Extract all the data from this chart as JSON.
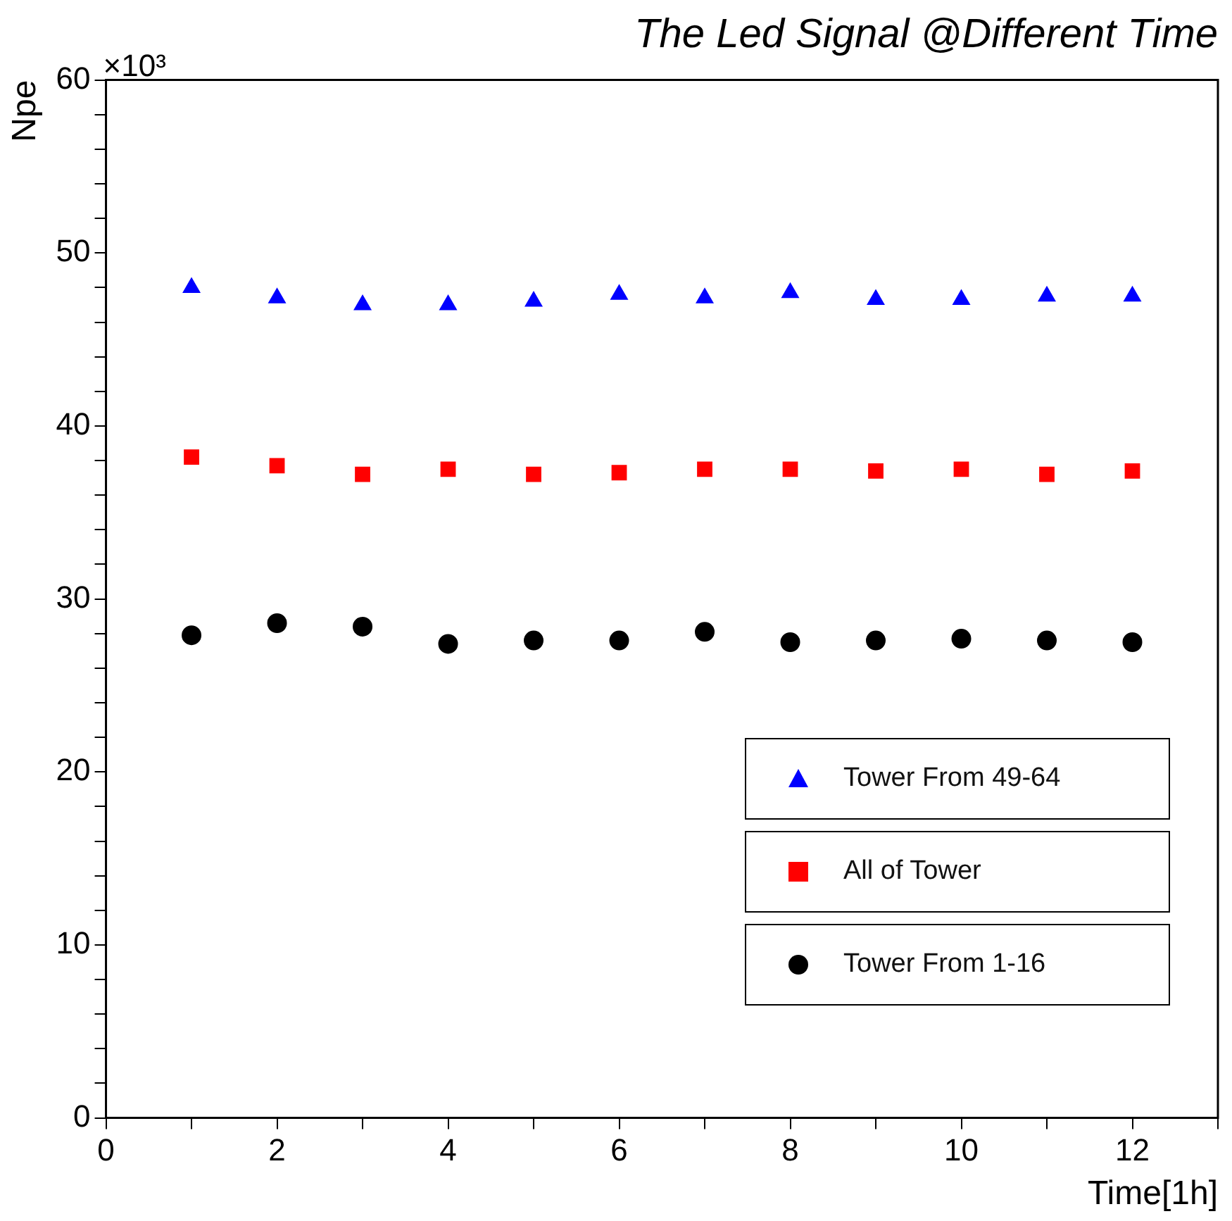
{
  "chart_data": {
    "type": "scatter",
    "title": "The Led Signal @Different Time",
    "xlabel": "Time[1h]",
    "ylabel": "Npe",
    "annotations": [
      "×10³"
    ],
    "x": [
      1,
      2,
      3,
      4,
      5,
      6,
      7,
      8,
      9,
      10,
      11,
      12
    ],
    "series": [
      {
        "name": "Tower From 49-64",
        "color": "#0000ff",
        "marker": "triangle",
        "values": [
          48.0,
          47.4,
          47.0,
          47.0,
          47.2,
          47.6,
          47.4,
          47.7,
          47.3,
          47.3,
          47.5,
          47.5
        ]
      },
      {
        "name": "All of Tower",
        "color": "#ff0000",
        "marker": "square",
        "values": [
          38.2,
          37.7,
          37.2,
          37.5,
          37.2,
          37.3,
          37.5,
          37.5,
          37.4,
          37.5,
          37.2,
          37.4
        ]
      },
      {
        "name": "Tower From 1-16",
        "color": "#000000",
        "marker": "circle",
        "values": [
          27.9,
          28.6,
          28.4,
          27.4,
          27.6,
          27.6,
          28.1,
          27.5,
          27.6,
          27.7,
          27.6,
          27.5
        ]
      }
    ],
    "xlim": [
      0,
      13
    ],
    "xticks": [
      0,
      {
        "value": 1,
        "label": null
      },
      2,
      {
        "value": 3,
        "label": null
      },
      4,
      {
        "value": 5,
        "label": null
      },
      6,
      {
        "value": 7,
        "label": null
      },
      8,
      {
        "value": 9,
        "label": null
      },
      10,
      {
        "value": 11,
        "label": null
      },
      12,
      {
        "value": 13,
        "label": null
      }
    ],
    "ylim": [
      0,
      60
    ],
    "yticks": [
      0,
      {
        "value": 2,
        "label": null
      },
      {
        "value": 4,
        "label": null
      },
      {
        "value": 6,
        "label": null
      },
      {
        "value": 8,
        "label": null
      },
      10,
      {
        "value": 12,
        "label": null
      },
      {
        "value": 14,
        "label": null
      },
      {
        "value": 16,
        "label": null
      },
      {
        "value": 18,
        "label": null
      },
      20,
      {
        "value": 22,
        "label": null
      },
      {
        "value": 24,
        "label": null
      },
      {
        "value": 26,
        "label": null
      },
      {
        "value": 28,
        "label": null
      },
      30,
      {
        "value": 32,
        "label": null
      },
      {
        "value": 34,
        "label": null
      },
      {
        "value": 36,
        "label": null
      },
      {
        "value": 38,
        "label": null
      },
      40,
      {
        "value": 42,
        "label": null
      },
      {
        "value": 44,
        "label": null
      },
      {
        "value": 46,
        "label": null
      },
      {
        "value": 48,
        "label": null
      },
      50,
      {
        "value": 52,
        "label": null
      },
      {
        "value": 54,
        "label": null
      },
      {
        "value": 56,
        "label": null
      },
      {
        "value": 58,
        "label": null
      },
      60
    ],
    "grid": false,
    "legend": "bottom right"
  }
}
